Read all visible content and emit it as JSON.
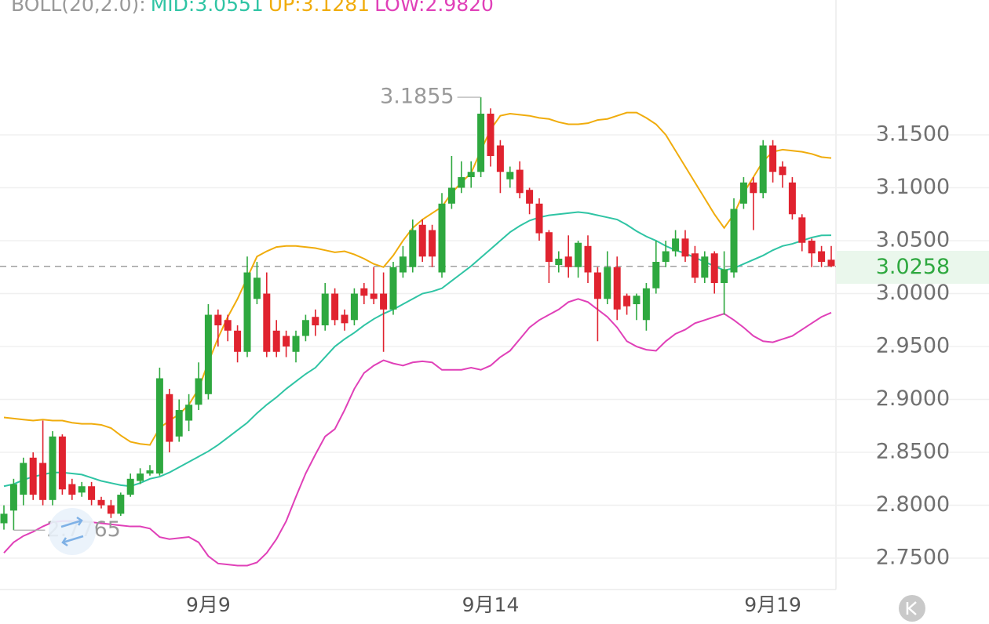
{
  "chart_data": {
    "type": "candlestick",
    "indicator": "BOLL(20,2.0):",
    "categories": [
      null,
      null,
      null,
      null,
      null,
      null,
      null,
      null,
      null,
      null,
      null,
      null,
      null,
      null,
      null,
      null,
      null,
      null,
      null,
      null,
      null,
      "9月9",
      null,
      null,
      null,
      null,
      null,
      null,
      null,
      null,
      null,
      null,
      null,
      null,
      null,
      null,
      null,
      null,
      null,
      null,
      null,
      null,
      null,
      null,
      null,
      null,
      null,
      null,
      null,
      null,
      "9月14",
      null,
      null,
      null,
      null,
      null,
      null,
      null,
      null,
      null,
      null,
      null,
      null,
      null,
      null,
      null,
      null,
      null,
      null,
      null,
      null,
      null,
      null,
      null,
      null,
      null,
      null,
      null,
      null,
      "9月19",
      null,
      null,
      null,
      null,
      null,
      null
    ],
    "open": [
      2.783,
      2.795,
      2.81,
      2.845,
      2.84,
      2.805,
      2.865,
      2.82,
      2.812,
      2.818,
      2.805,
      2.8,
      2.792,
      2.81,
      2.823,
      2.83,
      2.83,
      2.905,
      2.865,
      2.88,
      2.895,
      2.905,
      2.98,
      2.975,
      2.965,
      2.945,
      2.995,
      3.0,
      2.965,
      2.96,
      2.945,
      2.96,
      2.978,
      2.97,
      3.0,
      2.98,
      2.975,
      3.005,
      3.0,
      3.0,
      2.985,
      3.02,
      3.025,
      3.065,
      3.06,
      3.02,
      3.085,
      3.1,
      3.11,
      3.115,
      3.17,
      3.14,
      3.108,
      3.117,
      3.098,
      3.085,
      3.058,
      3.027,
      3.035,
      3.025,
      3.045,
      3.02,
      2.995,
      3.025,
      2.998,
      2.99,
      2.975,
      3.005,
      3.03,
      3.04,
      3.052,
      3.038,
      3.015,
      3.038,
      3.01,
      3.02,
      3.085,
      3.105,
      3.095,
      3.14,
      3.12,
      3.105,
      3.072,
      3.05,
      3.04,
      3.032
    ],
    "high": [
      2.8,
      2.825,
      2.845,
      2.85,
      2.88,
      2.87,
      2.867,
      2.825,
      2.822,
      2.822,
      2.808,
      2.805,
      2.812,
      2.83,
      2.835,
      2.838,
      2.93,
      2.91,
      2.9,
      2.905,
      2.935,
      2.99,
      2.985,
      2.98,
      2.97,
      3.035,
      3.03,
      3.02,
      2.975,
      2.965,
      2.965,
      2.98,
      2.985,
      3.01,
      3.005,
      2.985,
      3.005,
      3.01,
      3.025,
      3.02,
      3.03,
      3.045,
      3.07,
      3.07,
      3.065,
      3.095,
      3.13,
      3.125,
      3.125,
      3.1855,
      3.175,
      3.145,
      3.12,
      3.125,
      3.1,
      3.09,
      3.06,
      3.04,
      3.055,
      3.05,
      3.055,
      3.025,
      3.04,
      3.035,
      3.0,
      3.0,
      3.01,
      3.05,
      3.05,
      3.06,
      3.06,
      3.045,
      3.04,
      3.04,
      3.04,
      3.09,
      3.11,
      3.11,
      3.145,
      3.145,
      3.125,
      3.11,
      3.075,
      3.052,
      3.045,
      3.045
    ],
    "low": [
      2.777,
      2.7765,
      2.8,
      2.805,
      2.8,
      2.8,
      2.81,
      2.805,
      2.808,
      2.8,
      2.797,
      2.788,
      2.79,
      2.808,
      2.82,
      2.828,
      2.828,
      2.85,
      2.86,
      2.87,
      2.89,
      2.9,
      2.95,
      2.955,
      2.935,
      2.94,
      2.99,
      2.94,
      2.94,
      2.94,
      2.935,
      2.955,
      2.96,
      2.965,
      2.97,
      2.965,
      2.97,
      2.99,
      2.99,
      2.945,
      2.98,
      3.015,
      3.02,
      3.03,
      3.025,
      3.015,
      3.08,
      3.095,
      3.1,
      3.11,
      3.12,
      3.095,
      3.1,
      3.09,
      3.075,
      3.05,
      3.01,
      3.02,
      3.015,
      3.015,
      3.01,
      2.955,
      2.99,
      2.975,
      2.98,
      2.975,
      2.965,
      3.0,
      3.025,
      3.035,
      3.03,
      3.01,
      3.01,
      3.0,
      2.98,
      3.015,
      3.08,
      3.06,
      3.09,
      3.105,
      3.1,
      3.07,
      3.04,
      3.025,
      3.025,
      3.025
    ],
    "close": [
      2.792,
      2.82,
      2.84,
      2.81,
      2.805,
      2.865,
      2.815,
      2.81,
      2.818,
      2.805,
      2.8,
      2.792,
      2.81,
      2.825,
      2.83,
      2.833,
      2.92,
      2.86,
      2.89,
      2.895,
      2.92,
      2.98,
      2.97,
      2.965,
      2.945,
      3.02,
      3.015,
      2.945,
      2.945,
      2.95,
      2.96,
      2.975,
      2.97,
      3.0,
      2.975,
      2.972,
      3.0,
      2.998,
      2.995,
      2.985,
      3.025,
      3.035,
      3.06,
      3.035,
      3.035,
      3.085,
      3.1,
      3.11,
      3.115,
      3.17,
      3.13,
      3.115,
      3.115,
      3.095,
      3.085,
      3.057,
      3.03,
      3.033,
      3.025,
      3.048,
      3.02,
      2.995,
      3.025,
      2.985,
      2.988,
      2.998,
      3.005,
      3.03,
      3.04,
      3.052,
      3.035,
      3.015,
      3.035,
      3.01,
      3.023,
      3.08,
      3.105,
      3.095,
      3.14,
      3.115,
      3.112,
      3.075,
      3.048,
      3.038,
      3.03,
      3.0258
    ],
    "up_color": "#2ea83f",
    "down_color": "#e0232f",
    "series": [
      {
        "name": "MID:3.0551",
        "color": "#2fc4a4",
        "values": [
          2.818,
          2.82,
          2.824,
          2.827,
          2.829,
          2.831,
          2.831,
          2.83,
          2.829,
          2.826,
          2.823,
          2.821,
          2.819,
          2.818,
          2.821,
          2.825,
          2.827,
          2.831,
          2.836,
          2.841,
          2.846,
          2.851,
          2.857,
          2.864,
          2.871,
          2.878,
          2.887,
          2.895,
          2.902,
          2.91,
          2.917,
          2.924,
          2.93,
          2.94,
          2.95,
          2.957,
          2.963,
          2.97,
          2.976,
          2.981,
          2.985,
          2.99,
          2.995,
          3.0,
          3.002,
          3.005,
          3.012,
          3.019,
          3.026,
          3.034,
          3.042,
          3.05,
          3.058,
          3.064,
          3.069,
          3.072,
          3.074,
          3.075,
          3.076,
          3.077,
          3.076,
          3.074,
          3.072,
          3.07,
          3.065,
          3.059,
          3.054,
          3.05,
          3.045,
          3.041,
          3.038,
          3.034,
          3.03,
          3.026,
          3.022,
          3.024,
          3.028,
          3.032,
          3.036,
          3.041,
          3.045,
          3.047,
          3.05,
          3.053,
          3.055,
          3.0551
        ]
      },
      {
        "name": "UP:3.1281",
        "color": "#f0ac0c",
        "values": [
          2.883,
          2.882,
          2.881,
          2.88,
          2.881,
          2.88,
          2.88,
          2.878,
          2.877,
          2.877,
          2.876,
          2.873,
          2.866,
          2.86,
          2.858,
          2.857,
          2.873,
          2.88,
          2.886,
          2.895,
          2.91,
          2.935,
          2.958,
          2.978,
          2.995,
          3.015,
          3.035,
          3.04,
          3.044,
          3.045,
          3.045,
          3.044,
          3.043,
          3.041,
          3.039,
          3.04,
          3.037,
          3.033,
          3.028,
          3.025,
          3.036,
          3.05,
          3.062,
          3.07,
          3.076,
          3.082,
          3.095,
          3.105,
          3.114,
          3.135,
          3.155,
          3.168,
          3.17,
          3.169,
          3.168,
          3.166,
          3.165,
          3.162,
          3.16,
          3.16,
          3.161,
          3.164,
          3.165,
          3.168,
          3.171,
          3.171,
          3.166,
          3.16,
          3.15,
          3.135,
          3.12,
          3.105,
          3.09,
          3.075,
          3.062,
          3.075,
          3.095,
          3.11,
          3.125,
          3.134,
          3.136,
          3.135,
          3.134,
          3.132,
          3.129,
          3.1281
        ]
      },
      {
        "name": "LOW:2.9820",
        "color": "#e040b8",
        "values": [
          2.755,
          2.765,
          2.771,
          2.775,
          2.78,
          2.784,
          2.785,
          2.785,
          2.785,
          2.784,
          2.783,
          2.782,
          2.781,
          2.78,
          2.78,
          2.778,
          2.77,
          2.768,
          2.769,
          2.77,
          2.765,
          2.752,
          2.745,
          2.744,
          2.743,
          2.743,
          2.746,
          2.755,
          2.768,
          2.785,
          2.808,
          2.83,
          2.848,
          2.865,
          2.872,
          2.89,
          2.91,
          2.925,
          2.932,
          2.937,
          2.934,
          2.932,
          2.935,
          2.936,
          2.935,
          2.928,
          2.928,
          2.928,
          2.93,
          2.928,
          2.932,
          2.94,
          2.946,
          2.957,
          2.968,
          2.975,
          2.98,
          2.985,
          2.992,
          2.995,
          2.992,
          2.985,
          2.978,
          2.968,
          2.955,
          2.95,
          2.947,
          2.946,
          2.955,
          2.962,
          2.966,
          2.972,
          2.975,
          2.978,
          2.981,
          2.975,
          2.968,
          2.96,
          2.955,
          2.954,
          2.957,
          2.96,
          2.966,
          2.972,
          2.978,
          2.982
        ]
      }
    ],
    "high_label": 3.1855,
    "low_label": 2.7765,
    "last_price": {
      "value": 3.0258,
      "label": "3.0258",
      "color": "#2ea83f"
    },
    "ylim": [
      2.7219,
      3.2774
    ],
    "yticks": [
      {
        "value": 2.75,
        "label": "2.7500"
      },
      {
        "value": 2.8,
        "label": "2.8000"
      },
      {
        "value": 2.85,
        "label": "2.8500"
      },
      {
        "value": 2.9,
        "label": "2.9000"
      },
      {
        "value": 2.95,
        "label": "2.9500"
      },
      {
        "value": 3.0,
        "label": "3.0000"
      },
      {
        "value": 3.05,
        "label": "3.0500"
      },
      {
        "value": 3.1,
        "label": "3.1000"
      },
      {
        "value": 3.15,
        "label": "3.1500"
      }
    ],
    "grid": true
  }
}
